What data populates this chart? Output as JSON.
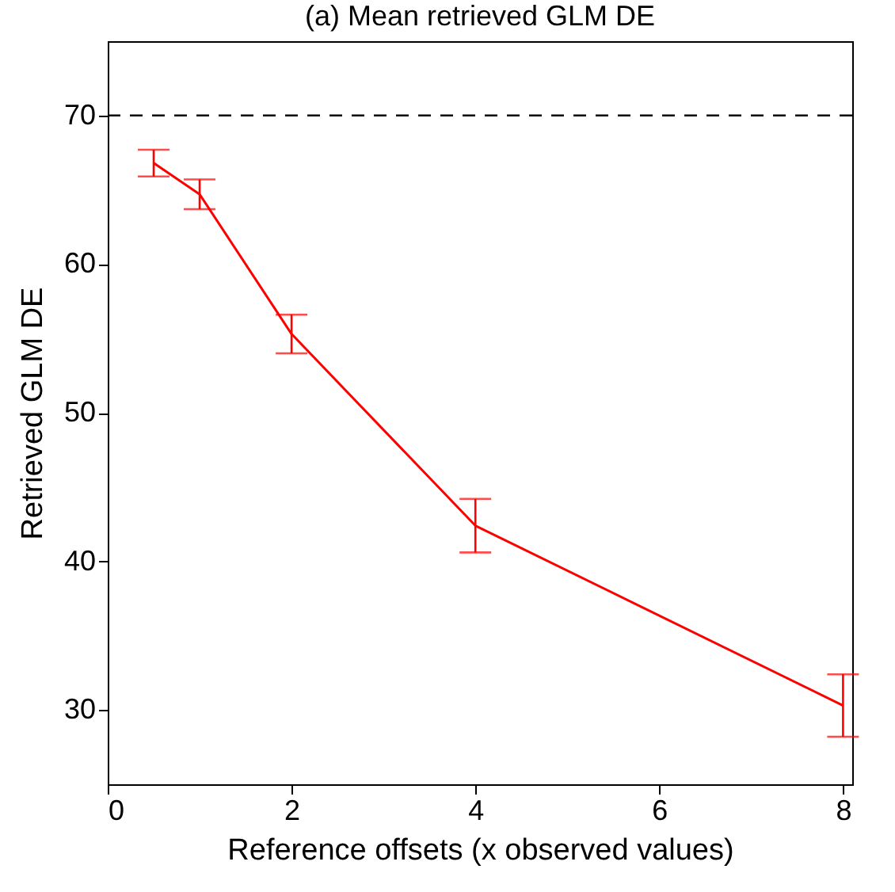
{
  "chart_data": {
    "type": "line",
    "title": "(a) Mean retrieved GLM DE",
    "xlabel": "Reference offsets (x observed values)",
    "ylabel": "Retrieved GLM DE",
    "x": [
      0.5,
      1,
      2,
      4,
      8
    ],
    "series": [
      {
        "color": "#ff0000",
        "values": [
          66.8,
          64.7,
          55.3,
          42.4,
          30.3
        ],
        "errors": [
          0.9,
          1.0,
          1.3,
          1.8,
          2.1
        ]
      }
    ],
    "xlim": [
      0,
      8.1
    ],
    "xticks": [
      0,
      2,
      4,
      6,
      8
    ],
    "ylim": [
      25,
      75
    ],
    "yticks": [
      30,
      40,
      50,
      60,
      70
    ],
    "ref_lines": [
      {
        "axis": "y",
        "value": 70,
        "color": "#000000",
        "line_style": "dashed"
      }
    ],
    "grid": false,
    "marker": "none",
    "line_style": "solid"
  }
}
